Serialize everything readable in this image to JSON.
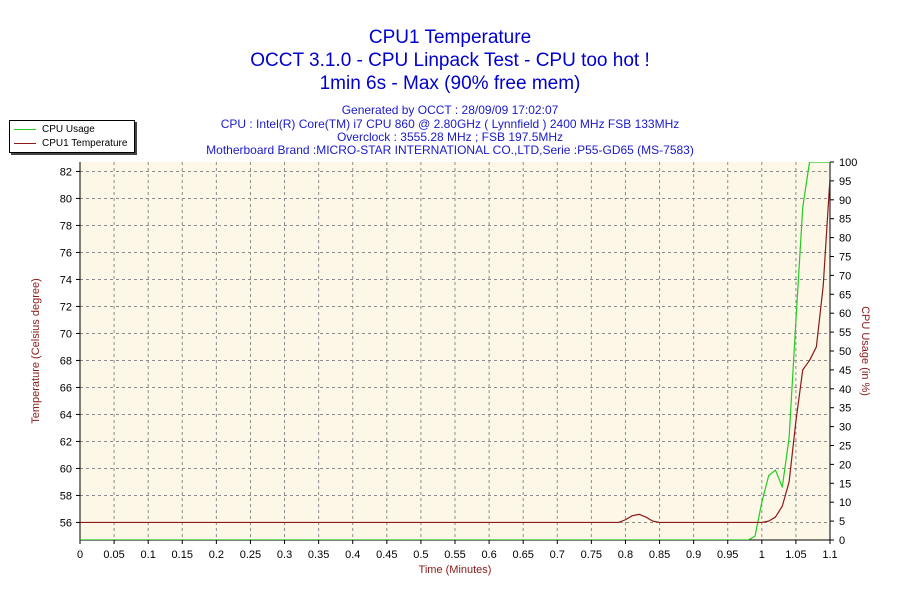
{
  "header": {
    "title": "CPU1 Temperature",
    "subtitle1": "OCCT 3.1.0 - CPU Linpack Test - CPU too hot !",
    "subtitle2": "1min 6s - Max (90% free mem)",
    "info1": "Generated by OCCT : 28/09/09 17:02:07",
    "info2": "CPU : Intel(R) Core(TM) i7 CPU 860 @ 2.80GHz ( Lynnfield ) 2400 MHz FSB 133MHz",
    "info3": "Overclock : 3555.28 MHz ; FSB 197.5MHz",
    "info4": "Motherboard Brand :MICRO-STAR INTERNATIONAL CO.,LTD,Serie :P55-GD65 (MS-7583)"
  },
  "colors": {
    "title": "#0000cc",
    "info": "#1a1acc",
    "axis_label": "#8b1a1a",
    "plot_bg": "#fcf7e6",
    "grid": "#8c8c8c",
    "cpu_usage": "#22cc22",
    "cpu_temp": "#8b1a1a"
  },
  "chart_data": {
    "type": "line",
    "title": "CPU1 Temperature",
    "xlabel": "Time (Minutes)",
    "ylabel": "Temperature (Celsius degree)",
    "y2label": "CPU Usage (in %)",
    "xlim": [
      0,
      1.1
    ],
    "ylim": [
      54.7,
      82.7
    ],
    "y2lim": [
      0,
      100
    ],
    "x_ticks": [
      "0",
      "0.05",
      "0.1",
      "0.15",
      "0.2",
      "0.25",
      "0.3",
      "0.35",
      "0.4",
      "0.45",
      "0.5",
      "0.55",
      "0.6",
      "0.65",
      "0.7",
      "0.75",
      "0.8",
      "0.85",
      "0.9",
      "0.95",
      "1",
      "1.05",
      "1.1"
    ],
    "y_ticks": [
      "56",
      "58",
      "60",
      "62",
      "64",
      "66",
      "68",
      "70",
      "72",
      "74",
      "76",
      "78",
      "80",
      "82"
    ],
    "y2_ticks": [
      "0",
      "5",
      "10",
      "15",
      "20",
      "25",
      "30",
      "35",
      "40",
      "45",
      "50",
      "55",
      "60",
      "65",
      "70",
      "75",
      "80",
      "85",
      "90",
      "95",
      "100"
    ],
    "grid": true,
    "legend": "top-left",
    "series": [
      {
        "name": "CPU Usage",
        "axis": "right",
        "x": [
          0,
          0.98,
          0.99,
          1.0,
          1.01,
          1.02,
          1.03,
          1.04,
          1.05,
          1.06,
          1.07,
          1.08,
          1.1
        ],
        "y": [
          0,
          0,
          1,
          10,
          17,
          18.5,
          14,
          27,
          58,
          88,
          100,
          100,
          100
        ]
      },
      {
        "name": "CPU1 Temperature",
        "axis": "left",
        "x": [
          0,
          0.79,
          0.8,
          0.81,
          0.82,
          0.83,
          0.84,
          0.85,
          1.0,
          1.01,
          1.02,
          1.03,
          1.04,
          1.05,
          1.06,
          1.07,
          1.08,
          1.09,
          1.1
        ],
        "y": [
          56,
          56,
          56.2,
          56.5,
          56.6,
          56.4,
          56.1,
          56,
          56,
          56.1,
          56.4,
          57.2,
          59,
          63.5,
          67.3,
          68,
          69,
          73.5,
          81.5
        ]
      }
    ]
  }
}
